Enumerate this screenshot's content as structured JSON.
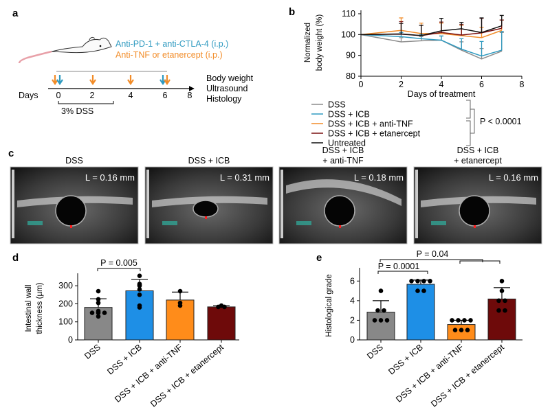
{
  "colors": {
    "dss": "#8c8c8c",
    "icb": "#2f9ac0",
    "anti_tnf": "#f28c28",
    "etanercept": "#7a1010",
    "untreated": "#111111",
    "bar_dss": "#888888",
    "bar_icb": "#1e8fe6",
    "bar_anti_tnf": "#ff8c1a",
    "bar_etanercept": "#6e0a0a"
  },
  "panel_a": {
    "label": "a",
    "icon": "mouse-illustration",
    "treatment_icb": "Anti-PD-1 + anti-CTLA-4 (i.p.)",
    "treatment_tnf": "Anti-TNF or etanercept (i.p.)",
    "days_label": "Days",
    "day_ticks": [
      "0",
      "2",
      "4",
      "6",
      "8"
    ],
    "dss_label": "3% DSS",
    "readouts": [
      "Body weight",
      "Ultrasound",
      "Histology"
    ]
  },
  "panel_c": {
    "label": "c",
    "images": [
      {
        "title": [
          "DSS"
        ],
        "measure": "L = 0.16 mm"
      },
      {
        "title": [
          "DSS + ICB"
        ],
        "measure": "L = 0.31 mm"
      },
      {
        "title": [
          "DSS + ICB",
          "+ anti-TNF"
        ],
        "measure": "L = 0.18 mm"
      },
      {
        "title": [
          "DSS + ICB",
          "+ etanercept"
        ],
        "measure": "L = 0.16 mm"
      }
    ]
  },
  "chart_data": [
    {
      "panel": "b",
      "type": "line",
      "xlabel": "Days of treatment",
      "ylabel": [
        "Normalized",
        "body weight (%)"
      ],
      "xlim": [
        0,
        8
      ],
      "ylim": [
        80,
        110
      ],
      "xticks": [
        "0",
        "2",
        "4",
        "6",
        "8"
      ],
      "yticks": [
        "80",
        "90",
        "100",
        "110"
      ],
      "x": [
        0,
        2,
        3,
        4,
        5,
        6,
        7
      ],
      "series": [
        {
          "name": "DSS",
          "color": "#8c8c8c",
          "values": [
            100,
            96.5,
            97,
            97.3,
            92.5,
            88.3,
            92
          ],
          "err": [
            0,
            2,
            2,
            2,
            4,
            5,
            9
          ]
        },
        {
          "name": "DSS + ICB",
          "color": "#2f9ac0",
          "values": [
            100,
            99,
            98,
            97.3,
            93,
            89.7,
            92.5
          ],
          "err": [
            0,
            2,
            2,
            2,
            5,
            7,
            9
          ]
        },
        {
          "name": "DSS + ICB + anti-TNF",
          "color": "#f28c28",
          "values": [
            100,
            102,
            100.5,
            100.5,
            99.5,
            98.5,
            102
          ],
          "err": [
            0,
            6,
            5,
            5,
            5,
            5,
            5
          ]
        },
        {
          "name": "DSS + ICB + etanercept",
          "color": "#7a1010",
          "values": [
            100,
            100.2,
            99.5,
            101,
            99.8,
            100.8,
            103
          ],
          "err": [
            0,
            6,
            5,
            5,
            5,
            7,
            4
          ]
        },
        {
          "name": "Untreated",
          "color": "#111111",
          "values": [
            100,
            100.3,
            99.5,
            101.8,
            102.8,
            101,
            104.2
          ],
          "err": [
            0,
            5,
            5,
            6,
            3,
            7,
            5
          ]
        }
      ],
      "legend_placement": "bottom",
      "annotation": "P < 0.0001"
    },
    {
      "panel": "d",
      "type": "bar",
      "ylabel": [
        "Intestinal wall",
        "thickness (µm)"
      ],
      "ylim": [
        0,
        350
      ],
      "yticks": [
        "0",
        "100",
        "200",
        "300"
      ],
      "categories": [
        "DSS",
        "DSS + ICB",
        "DSS + ICB + anti-TNF",
        "DSS + ICB + etanercept"
      ],
      "values": [
        180,
        272,
        221,
        183
      ],
      "sd_upper": [
        228,
        335,
        265,
        190
      ],
      "points": [
        [
          270,
          225,
          205,
          160,
          150,
          150,
          150,
          130
        ],
        [
          355,
          310,
          305,
          280,
          250,
          190,
          180,
          300
        ],
        [
          270,
          190,
          205
        ],
        [
          190,
          183,
          183
        ]
      ],
      "annotations": [
        {
          "text": "P = 0.005",
          "from": 0,
          "to": 1
        }
      ]
    },
    {
      "panel": "e",
      "type": "bar",
      "ylabel": [
        "Histological grade"
      ],
      "ylim": [
        0,
        7
      ],
      "yticks": [
        "0",
        "2",
        "4",
        "6"
      ],
      "categories": [
        "DSS",
        "DSS + ICB",
        "DSS + ICB + anti-TNF",
        "DSS + ICB + etanercept"
      ],
      "values": [
        2.83,
        5.67,
        1.57,
        4.17
      ],
      "sd_upper": [
        4.0,
        6.1,
        2.0,
        5.33
      ],
      "points": [
        [
          5,
          3,
          3,
          2,
          2,
          2
        ],
        [
          6,
          6,
          6,
          6,
          5,
          5
        ],
        [
          2,
          2,
          2,
          2,
          1,
          1,
          1
        ],
        [
          6,
          5,
          4,
          4,
          3,
          3
        ]
      ],
      "annotations": [
        {
          "text": "P = 0.0001",
          "from": 0,
          "to": 1
        },
        {
          "text": "P = 0.04",
          "from": 0,
          "to": "2-3"
        }
      ]
    }
  ],
  "panel_labels": {
    "b": "b",
    "d": "d",
    "e": "e"
  }
}
